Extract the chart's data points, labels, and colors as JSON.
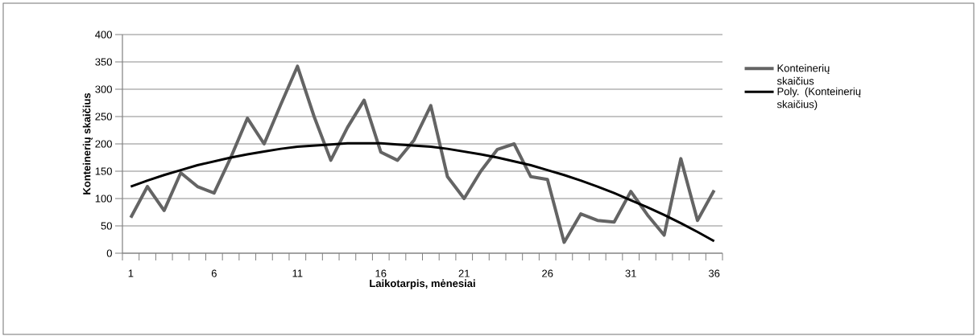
{
  "chart_data": {
    "type": "line",
    "xlabel": "Laikotarpis, mėnesiai",
    "ylabel": "Konteinerių skaičius",
    "categories": [
      "1",
      null,
      null,
      null,
      null,
      "6",
      null,
      null,
      null,
      null,
      "11",
      null,
      null,
      null,
      null,
      "16",
      null,
      null,
      null,
      null,
      "21",
      null,
      null,
      null,
      null,
      "26",
      null,
      null,
      null,
      null,
      "31",
      null,
      null,
      null,
      null,
      "36"
    ],
    "series": [
      {
        "name": "Konteinerių skaičius",
        "color": "#646464",
        "values": [
          65,
          122,
          78,
          147,
          122,
          110,
          175,
          247,
          200,
          272,
          342,
          250,
          170,
          230,
          280,
          185,
          170,
          207,
          270,
          140,
          100,
          150,
          190,
          200,
          140,
          135,
          20,
          72,
          60,
          57,
          113,
          70,
          33,
          173,
          60,
          115
        ]
      },
      {
        "name": "Poly. (Konteinerių skaičius)",
        "type": "line",
        "color": "#000000",
        "values": [
          122,
          133,
          143,
          152,
          161,
          168,
          175,
          181,
          186,
          191,
          195,
          197,
          199,
          201,
          201,
          201,
          199,
          197,
          195,
          191,
          186,
          181,
          175,
          168,
          161,
          152,
          143,
          133,
          122,
          110,
          97,
          84,
          70,
          55,
          39,
          22
        ]
      }
    ],
    "ylim": [
      0,
      400
    ],
    "yticks": [
      0,
      50,
      100,
      150,
      200,
      250,
      300,
      350,
      400
    ],
    "grid": "y",
    "legend": "right"
  }
}
